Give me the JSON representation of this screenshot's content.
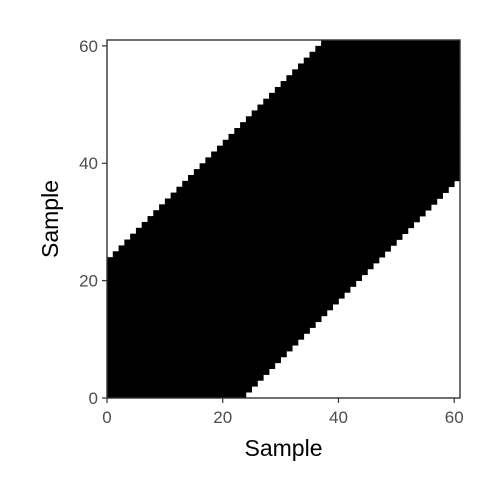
{
  "chart_data": {
    "type": "heatmap",
    "xlabel": "Sample",
    "ylabel": "Sample",
    "xlim": [
      0,
      61
    ],
    "ylim": [
      0,
      61
    ],
    "x_ticks": [
      0,
      20,
      40,
      60
    ],
    "y_ticks": [
      0,
      20,
      40,
      60
    ],
    "x_tick_labels": [
      "0",
      "20",
      "40",
      "60"
    ],
    "y_tick_labels": [
      "0",
      "20",
      "40",
      "60"
    ],
    "band_lower_offset": -23,
    "band_upper_offset": 23,
    "fill_color": "#000000",
    "background_color": "#ffffff",
    "grid": false,
    "legend": "none"
  }
}
